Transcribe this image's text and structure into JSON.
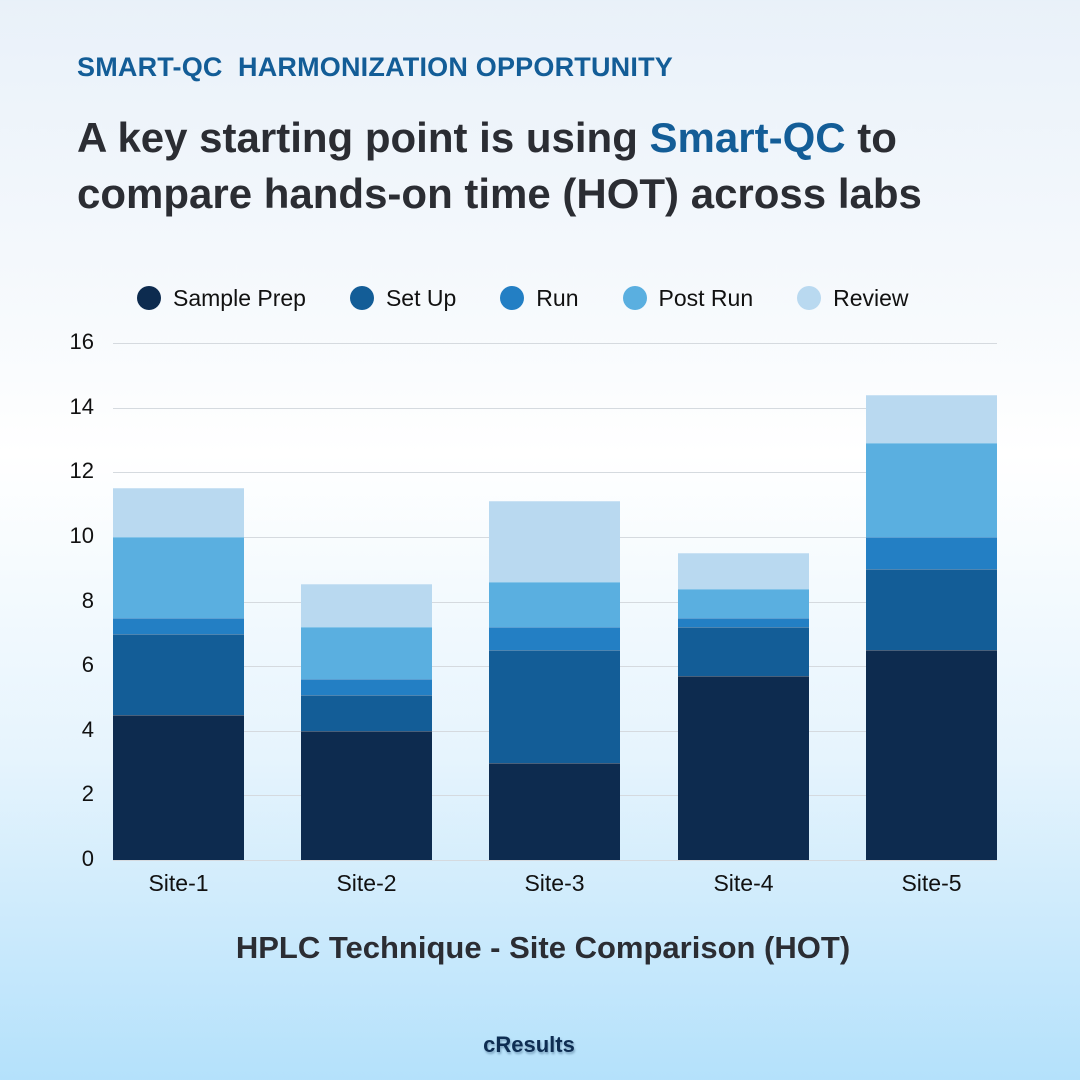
{
  "header": {
    "eyebrow": "SMART-QC  HARMONIZATION OPPORTUNITY",
    "headline_part1": "A key starting point is using ",
    "headline_accent": "Smart-QC",
    "headline_part2": " to compare hands-on time (HOT) across labs"
  },
  "colors": {
    "accent": "#135d97",
    "text": "#2b2d33"
  },
  "chart_data": {
    "type": "bar",
    "stacked": true,
    "title": "HPLC Technique - Site Comparison (HOT)",
    "xlabel": "",
    "ylabel": "",
    "ylim": [
      0,
      16
    ],
    "yticks": [
      0,
      2,
      4,
      6,
      8,
      10,
      12,
      14,
      16
    ],
    "grid": true,
    "legend_position": "top",
    "categories": [
      "Site-1",
      "Site-2",
      "Site-3",
      "Site-4",
      "Site-5"
    ],
    "series": [
      {
        "name": "Sample Prep",
        "color": "#0d2b4f",
        "values": [
          4.5,
          4.0,
          3.0,
          5.7,
          6.5
        ]
      },
      {
        "name": "Set Up",
        "color": "#135d97",
        "values": [
          2.5,
          1.1,
          3.5,
          1.5,
          2.5
        ]
      },
      {
        "name": "Run",
        "color": "#237fc4",
        "values": [
          0.5,
          0.5,
          0.7,
          0.3,
          1.0
        ]
      },
      {
        "name": "Post Run",
        "color": "#5aafe0",
        "values": [
          2.5,
          1.6,
          1.4,
          0.9,
          2.9
        ]
      },
      {
        "name": "Review",
        "color": "#b9d9f0",
        "values": [
          1.5,
          1.35,
          2.5,
          1.1,
          1.5
        ]
      }
    ],
    "totals": [
      11.5,
      8.55,
      11.1,
      9.5,
      14.4
    ]
  },
  "footer": {
    "brand": "cResults"
  }
}
